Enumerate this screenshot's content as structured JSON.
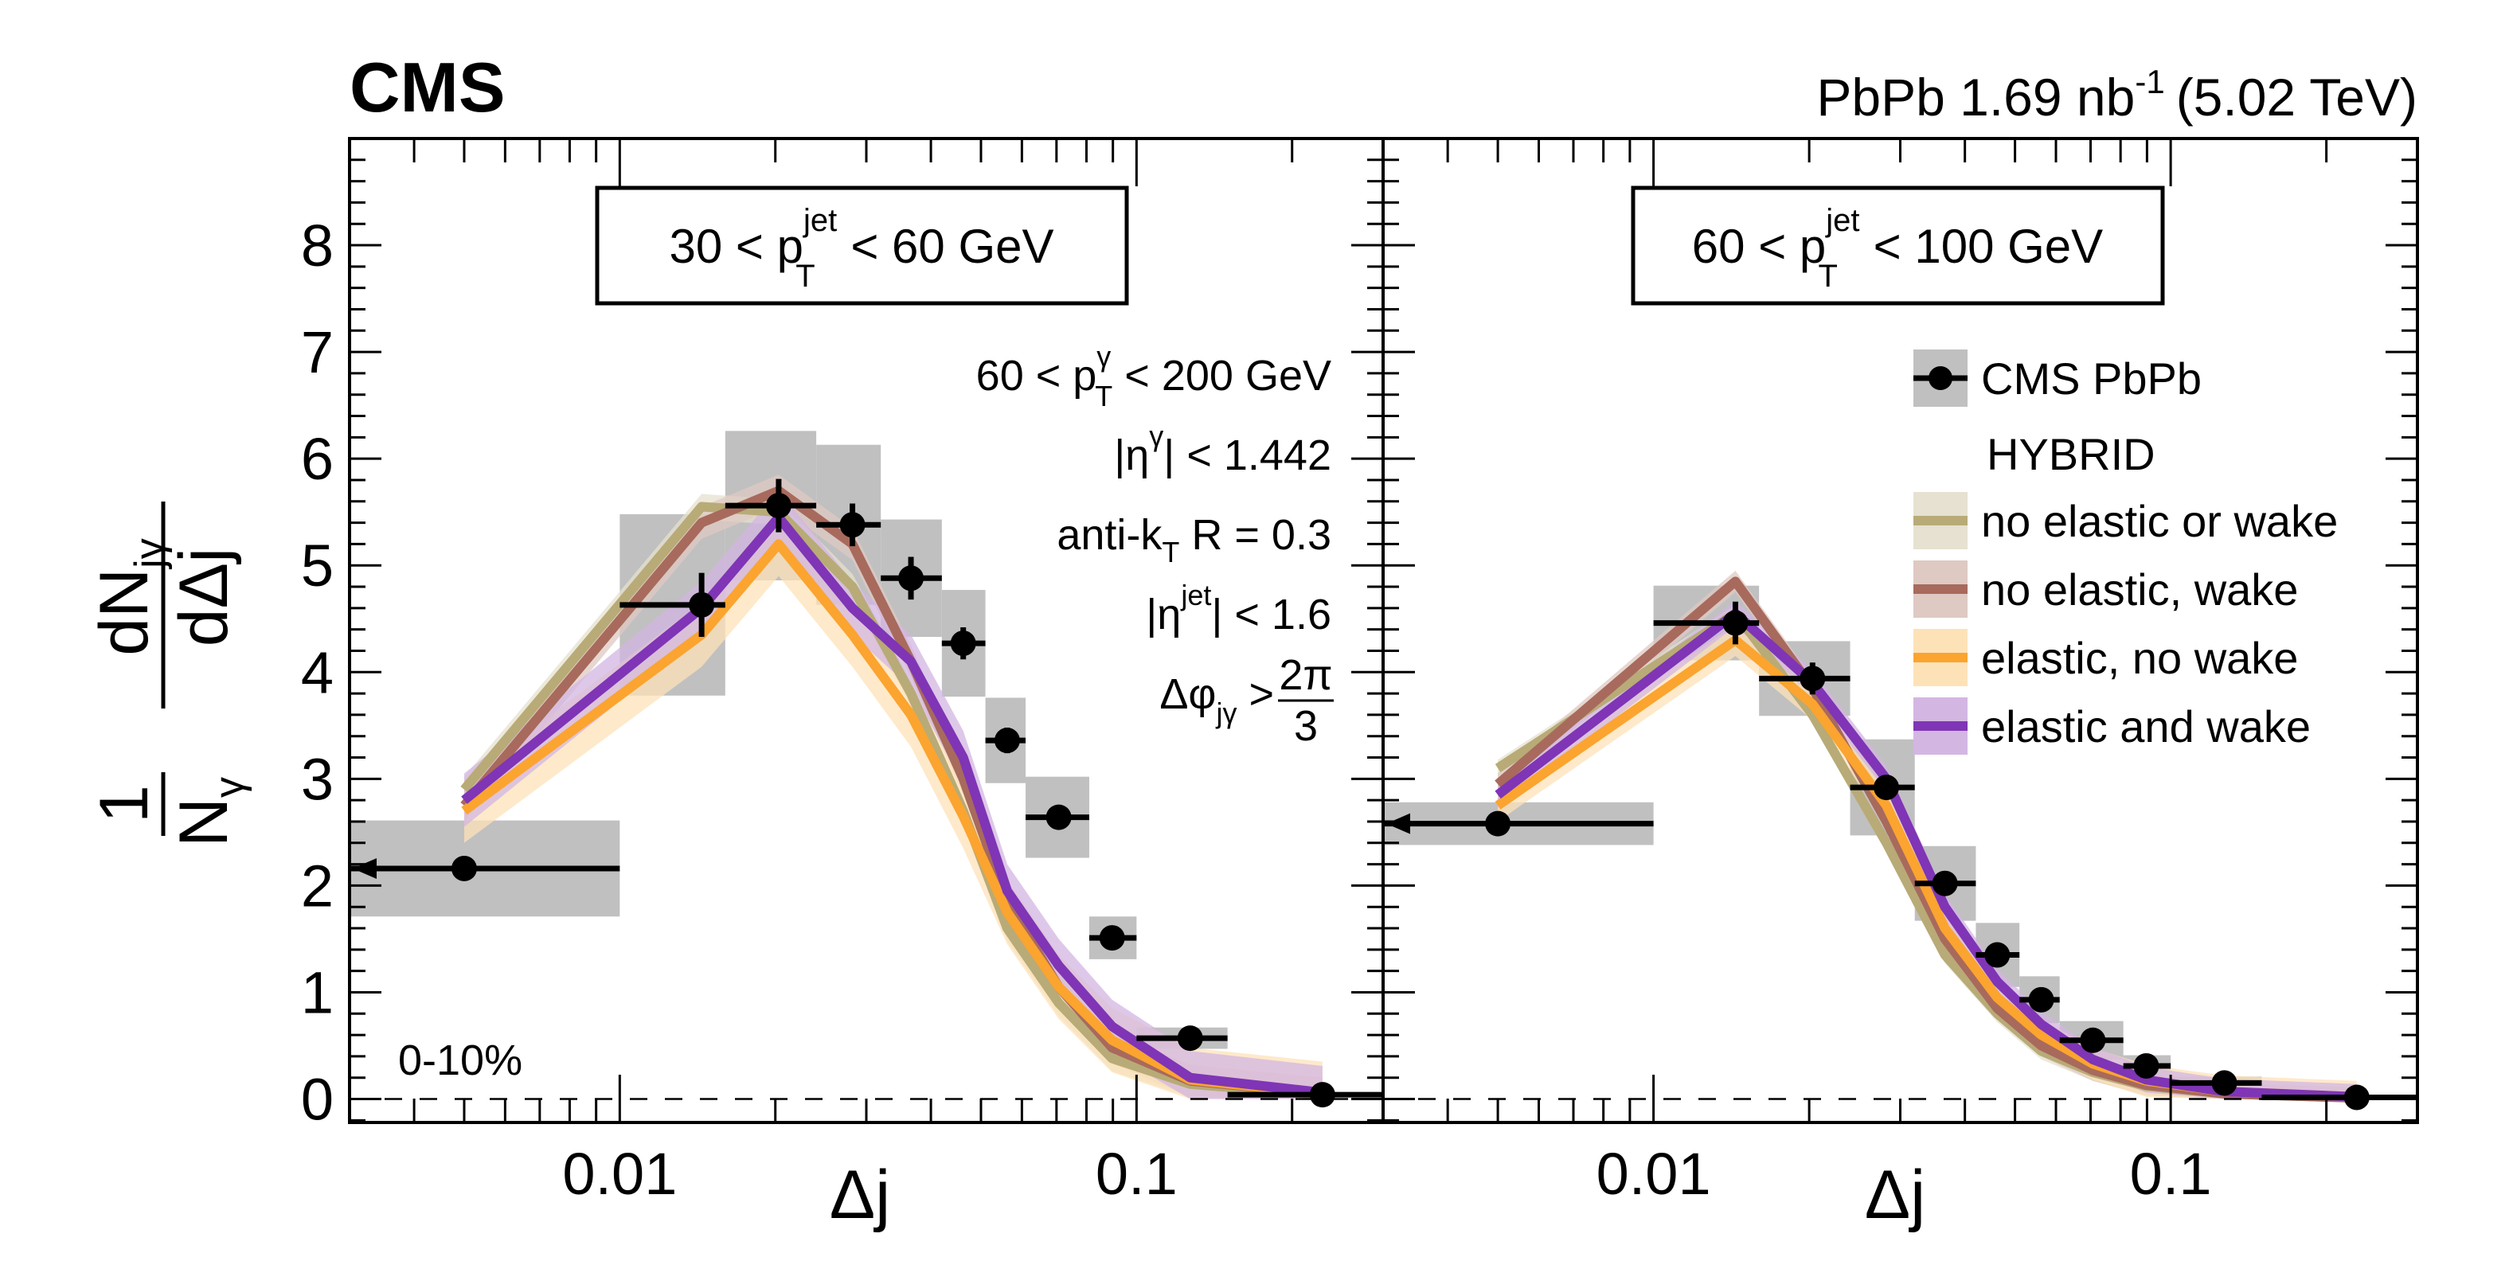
{
  "header": {
    "experiment": "CMS",
    "lumi_text": "PbPb 1.69 nb",
    "lumi_sup": "-1",
    "energy": "(5.02 TeV)"
  },
  "axes": {
    "xlabel": "Δj",
    "ylabel_num": "dN",
    "ylabel_num_sub": "jγ",
    "ylabel_den": "dΔj",
    "ylabel_pre_num": "1",
    "ylabel_pre_den": "N",
    "ylabel_pre_den_sub": "γ"
  },
  "selection": {
    "line1_pre": "60 < p",
    "line1_sup": "γ",
    "line1_sub": "T",
    "line1_post": " < 200 GeV",
    "line2_pre": "|η",
    "line2_sup": "γ",
    "line2_post": "| < 1.442",
    "line3_pre": "anti-k",
    "line3_sub": "T",
    "line3_post": " R = 0.3",
    "line4_pre": "|η",
    "line4_sup": "jet",
    "line4_post": "| < 1.6",
    "line5_pre": "Δφ",
    "line5_sub": "jγ",
    "line5_mid": " > ",
    "line5_frac_num": "2π",
    "line5_frac_den": "3"
  },
  "centrality": "0-10%",
  "legend": {
    "data_label": "CMS PbPb",
    "model_header": "HYBRID",
    "models": [
      {
        "label": "no elastic or wake",
        "line": "#b8ab77",
        "band": "#e6e1d0"
      },
      {
        "label": "no elastic, wake",
        "line": "#a86a5c",
        "band": "#dfc9c3"
      },
      {
        "label": "elastic, no wake",
        "line": "#fba42f",
        "band": "#fde2b8"
      },
      {
        "label": "elastic and wake",
        "line": "#7f35b5",
        "band": "#d3b6e2"
      }
    ]
  },
  "chart_data": [
    {
      "type": "line",
      "panel": "left",
      "title": "30 < p_T^jet < 60 GeV",
      "title_pre": "30 < p",
      "title_sup": "jet",
      "title_sub": "T",
      "title_post": " < 60 GeV",
      "xlabel": "Δj",
      "ylabel": "1/N_γ dN_jγ/dΔj",
      "xscale": "log",
      "xlim": [
        0.003,
        0.3
      ],
      "ylim": [
        -0.22,
        9
      ],
      "xticks": [
        0.01,
        0.1
      ],
      "xtick_labels": [
        "0.01",
        "0.1"
      ],
      "yticks": [
        0,
        1,
        2,
        3,
        4,
        5,
        6,
        7,
        8
      ],
      "bin_edges": [
        0.0,
        0.01,
        0.016,
        0.024,
        0.032,
        0.042,
        0.051,
        0.061,
        0.081,
        0.1,
        0.15,
        0.3
      ],
      "x": [
        0.005,
        0.0144,
        0.0203,
        0.0282,
        0.0366,
        0.0462,
        0.0562,
        0.0707,
        0.0897,
        0.127,
        0.229
      ],
      "data": {
        "name": "CMS PbPb",
        "values": [
          2.16,
          4.63,
          5.56,
          5.38,
          4.88,
          4.27,
          3.36,
          2.64,
          1.51,
          0.57,
          0.04
        ],
        "stat_err": [
          0.1,
          0.3,
          0.25,
          0.2,
          0.2,
          0.15,
          0.12,
          0.08,
          0.06,
          0.03,
          0.01
        ],
        "syst_err": [
          0.45,
          0.85,
          0.7,
          0.75,
          0.55,
          0.5,
          0.4,
          0.38,
          0.2,
          0.1,
          0.02
        ]
      },
      "series": [
        {
          "name": "no elastic or wake",
          "values": [
            2.9,
            5.55,
            5.5,
            4.8,
            3.8,
            2.7,
            1.6,
            0.9,
            0.38,
            0.14,
            0.04
          ],
          "band": 0.12
        },
        {
          "name": "no elastic, wake",
          "values": [
            2.75,
            5.4,
            5.7,
            5.2,
            4.1,
            3.0,
            1.85,
            1.05,
            0.48,
            0.17,
            0.05
          ],
          "band": 0.15
        },
        {
          "name": "elastic, no wake",
          "values": [
            2.7,
            4.35,
            5.2,
            4.35,
            3.6,
            2.65,
            1.75,
            1.05,
            0.55,
            0.18,
            0.05
          ],
          "band": 0.3
        },
        {
          "name": "elastic and wake",
          "values": [
            2.8,
            4.6,
            5.45,
            4.6,
            4.1,
            3.2,
            1.95,
            1.25,
            0.68,
            0.2,
            0.06
          ],
          "band": 0.25
        }
      ]
    },
    {
      "type": "line",
      "panel": "right",
      "title": "60 < p_T^jet < 100 GeV",
      "title_pre": "60 < p",
      "title_sup": "jet",
      "title_sub": "T",
      "title_post": " < 100 GeV",
      "xlabel": "Δj",
      "ylabel": "1/N_γ dN_jγ/dΔj",
      "xscale": "log",
      "xlim": [
        0.003,
        0.3
      ],
      "ylim": [
        -0.22,
        9
      ],
      "xticks": [
        0.01,
        0.1
      ],
      "xtick_labels": [
        "0.01",
        "0.1"
      ],
      "bin_edges": [
        0.0,
        0.01,
        0.016,
        0.024,
        0.032,
        0.042,
        0.051,
        0.061,
        0.081,
        0.1,
        0.15,
        0.3
      ],
      "x": [
        0.005,
        0.0144,
        0.0203,
        0.0282,
        0.0366,
        0.0462,
        0.0562,
        0.0707,
        0.0897,
        0.127,
        0.229
      ],
      "data": {
        "name": "CMS PbPb",
        "values": [
          2.58,
          4.46,
          3.94,
          2.92,
          2.02,
          1.35,
          0.93,
          0.55,
          0.31,
          0.15,
          0.015
        ],
        "stat_err": [
          0.1,
          0.2,
          0.15,
          0.1,
          0.08,
          0.06,
          0.05,
          0.04,
          0.03,
          0.02,
          0.01
        ],
        "syst_err": [
          0.2,
          0.35,
          0.35,
          0.45,
          0.35,
          0.3,
          0.22,
          0.18,
          0.1,
          0.06,
          0.02
        ]
      },
      "series": [
        {
          "name": "no elastic or wake",
          "values": [
            3.1,
            4.55,
            3.6,
            2.4,
            1.35,
            0.8,
            0.45,
            0.25,
            0.12,
            0.05,
            0.01
          ],
          "band": 0.08
        },
        {
          "name": "no elastic, wake",
          "values": [
            2.95,
            4.85,
            3.85,
            2.6,
            1.5,
            0.85,
            0.5,
            0.27,
            0.13,
            0.05,
            0.01
          ],
          "band": 0.1
        },
        {
          "name": "elastic, no wake",
          "values": [
            2.75,
            4.3,
            3.7,
            2.75,
            1.6,
            0.95,
            0.6,
            0.33,
            0.17,
            0.07,
            0.02
          ],
          "band": 0.15
        },
        {
          "name": "elastic and wake",
          "values": [
            2.85,
            4.55,
            3.9,
            3.0,
            1.8,
            1.1,
            0.7,
            0.37,
            0.18,
            0.07,
            0.02
          ],
          "band": 0.12
        }
      ]
    }
  ]
}
